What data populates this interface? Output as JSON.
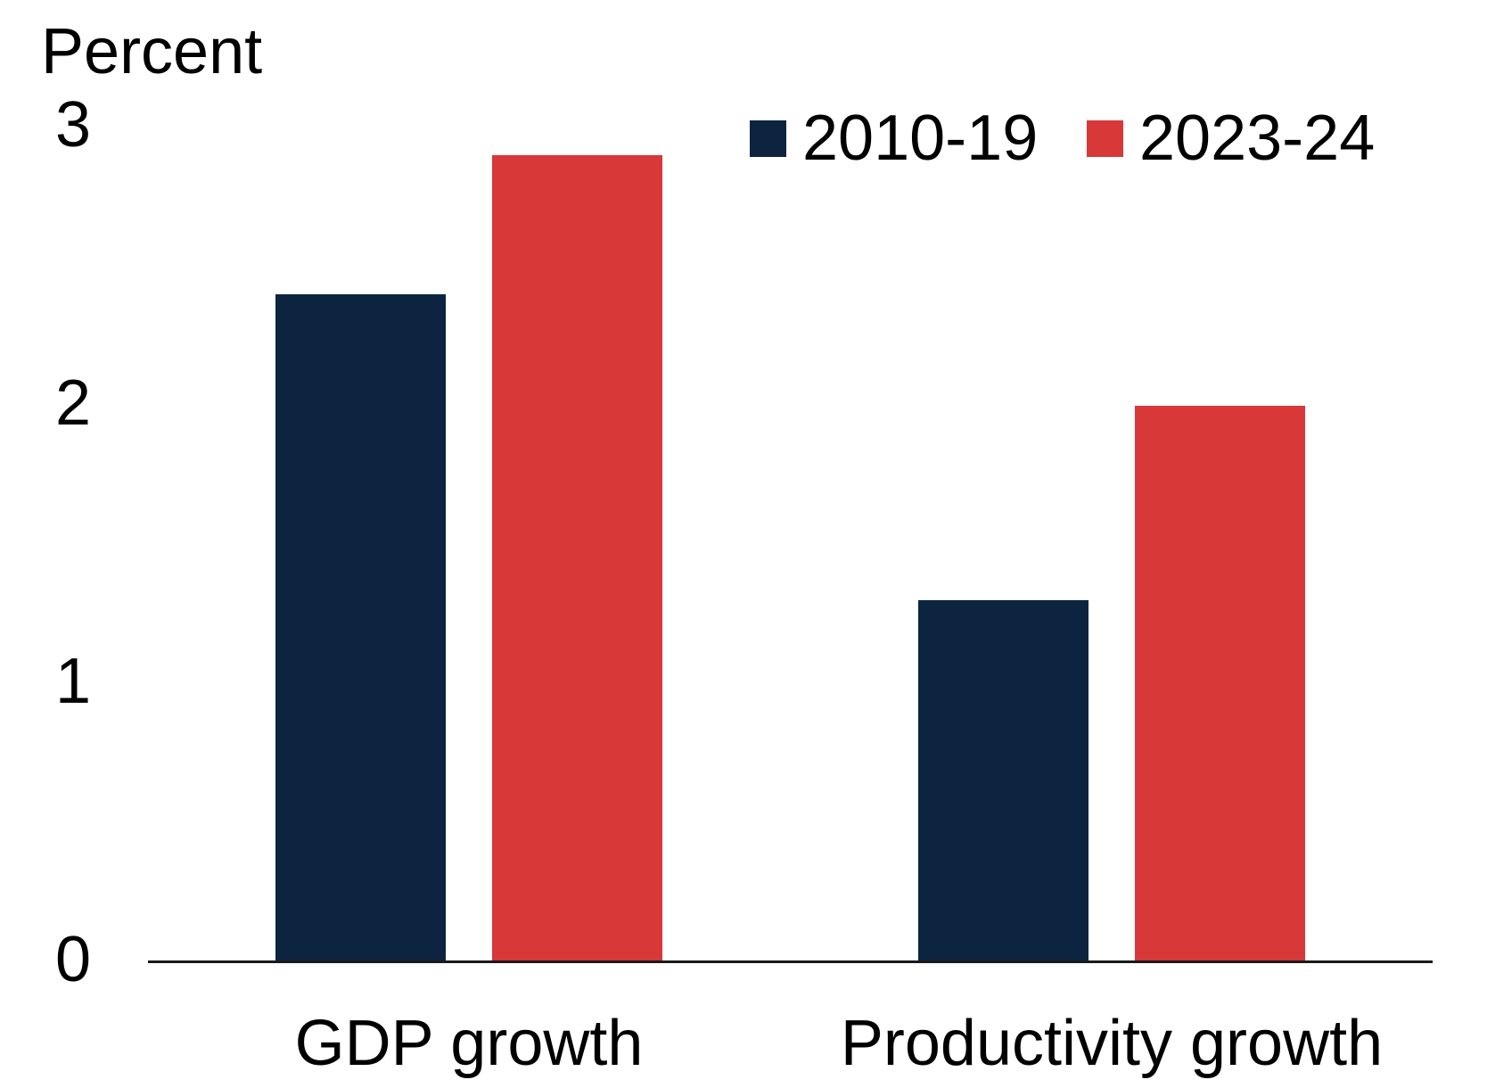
{
  "chart_data": {
    "type": "bar",
    "title": "",
    "ylabel": "Percent",
    "xlabel": "",
    "categories": [
      "GDP growth",
      "Productivity growth"
    ],
    "series": [
      {
        "name": "2010-19",
        "color": "#0c2440",
        "values": [
          2.4,
          1.3
        ]
      },
      {
        "name": "2023-24",
        "color": "#d83838",
        "values": [
          2.9,
          2.0
        ]
      }
    ],
    "ylim": [
      0,
      3
    ],
    "yticks": [
      3,
      2,
      1,
      0
    ],
    "grid": false,
    "legend_position": "top-right",
    "axis_color": "#1a1a1a"
  }
}
